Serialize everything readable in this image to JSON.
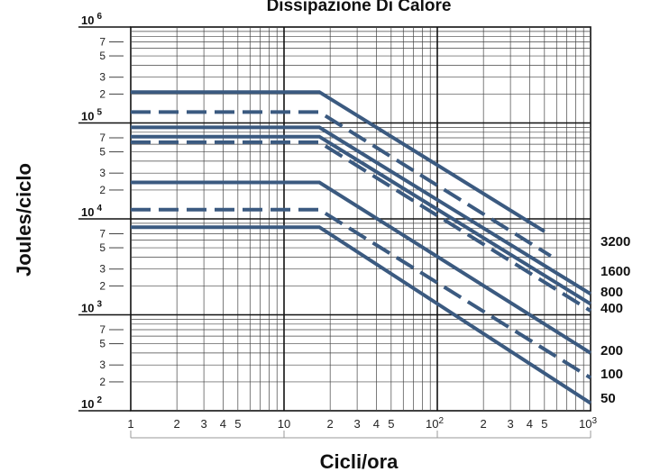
{
  "chart_data": {
    "type": "line",
    "title": "Dissipazione Di Calore",
    "xlabel": "Cicli/ora",
    "ylabel": "Joules/ciclo",
    "x_scale": "log",
    "y_scale": "log",
    "xlim": [
      1,
      1000
    ],
    "ylim": [
      100,
      1000000
    ],
    "grid": true,
    "x_ticks": [
      {
        "value": 1,
        "label": "1",
        "sup": ""
      },
      {
        "value": 2,
        "label": "2",
        "sup": ""
      },
      {
        "value": 3,
        "label": "3",
        "sup": ""
      },
      {
        "value": 4,
        "label": "4",
        "sup": ""
      },
      {
        "value": 5,
        "label": "5",
        "sup": ""
      },
      {
        "value": 10,
        "label": "10",
        "sup": ""
      },
      {
        "value": 20,
        "label": "2",
        "sup": ""
      },
      {
        "value": 30,
        "label": "3",
        "sup": ""
      },
      {
        "value": 40,
        "label": "4",
        "sup": ""
      },
      {
        "value": 50,
        "label": "5",
        "sup": ""
      },
      {
        "value": 100,
        "label": "10",
        "sup": "2"
      },
      {
        "value": 200,
        "label": "2",
        "sup": ""
      },
      {
        "value": 300,
        "label": "3",
        "sup": ""
      },
      {
        "value": 400,
        "label": "4",
        "sup": ""
      },
      {
        "value": 500,
        "label": "5",
        "sup": ""
      },
      {
        "value": 1000,
        "label": "10",
        "sup": "3"
      }
    ],
    "y_major_ticks": [
      {
        "value": 100,
        "label": "10",
        "sup": "2"
      },
      {
        "value": 1000,
        "label": "10",
        "sup": "3"
      },
      {
        "value": 10000,
        "label": "10",
        "sup": "4"
      },
      {
        "value": 100000,
        "label": "10",
        "sup": "5"
      },
      {
        "value": 1000000,
        "label": "10",
        "sup": "6"
      }
    ],
    "y_minor_tick_labels": [
      "2",
      "3",
      "5",
      "7"
    ],
    "series": [
      {
        "name": "3200",
        "dash": false,
        "points": [
          [
            1,
            210000
          ],
          [
            17,
            210000
          ],
          [
            500,
            7400
          ]
        ]
      },
      {
        "name": "1600",
        "dash": true,
        "points": [
          [
            1,
            130000
          ],
          [
            17,
            130000
          ],
          [
            550,
            4100
          ]
        ]
      },
      {
        "name": "800",
        "dash": false,
        "points": [
          [
            1,
            90000
          ],
          [
            17,
            90000
          ],
          [
            1000,
            1650
          ]
        ]
      },
      {
        "name": "400",
        "dash": false,
        "points": [
          [
            1,
            72000
          ],
          [
            17,
            72000
          ],
          [
            1000,
            1300
          ]
        ]
      },
      {
        "name": "",
        "dash": true,
        "points": [
          [
            1,
            63000
          ],
          [
            17,
            63000
          ],
          [
            1000,
            1100
          ]
        ]
      },
      {
        "name": "200",
        "dash": false,
        "points": [
          [
            1,
            24000
          ],
          [
            17,
            24000
          ],
          [
            1000,
            400
          ]
        ]
      },
      {
        "name": "100",
        "dash": true,
        "points": [
          [
            1,
            12500
          ],
          [
            17,
            12500
          ],
          [
            1000,
            220
          ]
        ]
      },
      {
        "name": "50",
        "dash": false,
        "points": [
          [
            1,
            8200
          ],
          [
            17,
            8200
          ],
          [
            1000,
            120
          ]
        ]
      }
    ],
    "line_color": "#3b5a80"
  }
}
